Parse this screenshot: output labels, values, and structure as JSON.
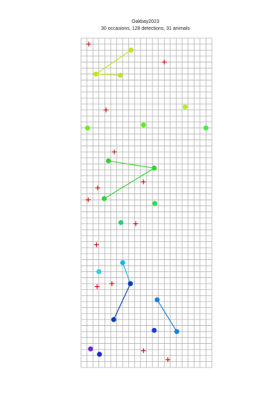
{
  "title": "Oakbay2023",
  "subtitle": "30 occasions, 128 detections, 31 animals",
  "chart_data": {
    "type": "scatter",
    "title": "Oakbay2023",
    "subtitle": "30 occasions, 128 detections, 31 animals",
    "xlim": [
      0,
      22
    ],
    "ylim": [
      0,
      55
    ],
    "grid": true,
    "grid_step": 1,
    "axes_visible": false,
    "traps": [
      {
        "x": 1.3,
        "y": 54.0
      },
      {
        "x": 14.0,
        "y": 51.0
      },
      {
        "x": 4.2,
        "y": 43.0
      },
      {
        "x": 5.6,
        "y": 36.0
      },
      {
        "x": 10.5,
        "y": 31.0
      },
      {
        "x": 2.8,
        "y": 30.0
      },
      {
        "x": 1.2,
        "y": 28.0
      },
      {
        "x": 9.2,
        "y": 24.0
      },
      {
        "x": 2.6,
        "y": 20.5
      },
      {
        "x": 2.7,
        "y": 13.5
      },
      {
        "x": 5.2,
        "y": 14.0
      },
      {
        "x": 10.5,
        "y": 2.8
      },
      {
        "x": 14.6,
        "y": 1.3
      }
    ],
    "trap_color": "#cc0000",
    "animals": [
      {
        "color": "#c5e31c",
        "points": [
          {
            "x": 8.4,
            "y": 53.0
          },
          {
            "x": 2.5,
            "y": 49.0
          },
          {
            "x": 6.6,
            "y": 48.8
          }
        ]
      },
      {
        "color": "#b5f023",
        "points": [
          {
            "x": 17.5,
            "y": 43.5
          }
        ]
      },
      {
        "color": "#6ef01c",
        "points": [
          {
            "x": 1.1,
            "y": 40.0
          }
        ]
      },
      {
        "color": "#5cec1a",
        "points": [
          {
            "x": 10.5,
            "y": 40.5
          }
        ]
      },
      {
        "color": "#3df23a",
        "points": [
          {
            "x": 21.0,
            "y": 40.0
          }
        ]
      },
      {
        "color": "#32d432",
        "points": [
          {
            "x": 4.6,
            "y": 34.5
          },
          {
            "x": 12.3,
            "y": 33.3
          },
          {
            "x": 3.9,
            "y": 28.2
          }
        ]
      },
      {
        "color": "#27e05a",
        "points": [
          {
            "x": 12.4,
            "y": 27.4
          }
        ]
      },
      {
        "color": "#21d474",
        "points": [
          {
            "x": 6.7,
            "y": 24.2
          }
        ]
      },
      {
        "color": "#0fb8e8",
        "points": [
          {
            "x": 7.0,
            "y": 17.5
          },
          {
            "x": 8.3,
            "y": 14.0
          }
        ]
      },
      {
        "color": "#2ad0e6",
        "points": [
          {
            "x": 3.0,
            "y": 16.0
          }
        ]
      },
      {
        "color": "#0b3fb0",
        "points": [
          {
            "x": 5.5,
            "y": 8.0
          },
          {
            "x": 8.3,
            "y": 14.0
          }
        ]
      },
      {
        "color": "#1e7fe0",
        "points": [
          {
            "x": 12.8,
            "y": 11.3
          },
          {
            "x": 16.1,
            "y": 6.0
          }
        ]
      },
      {
        "color": "#1f3cd6",
        "points": [
          {
            "x": 12.3,
            "y": 6.2
          }
        ]
      },
      {
        "color": "#6a2bd8",
        "points": [
          {
            "x": 1.6,
            "y": 3.1
          }
        ]
      },
      {
        "color": "#1d2ad2",
        "points": [
          {
            "x": 3.1,
            "y": 2.2
          }
        ]
      }
    ]
  }
}
